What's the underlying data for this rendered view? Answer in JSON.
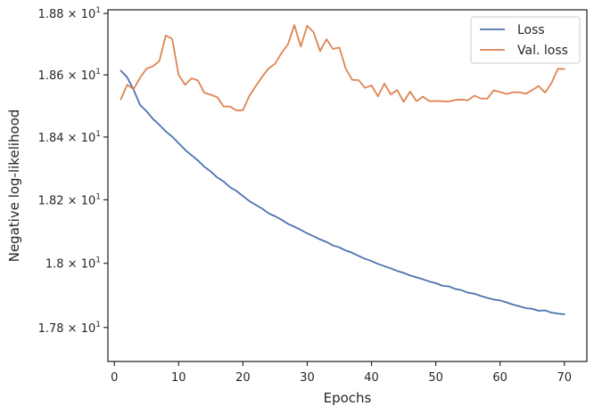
{
  "chart_data": {
    "type": "line",
    "xlabel": "Epochs",
    "ylabel": "Negative log-likelihood",
    "xlim": [
      -1,
      73.5
    ],
    "ylim": [
      17.695,
      18.812
    ],
    "y_scale": "log",
    "grid": false,
    "legend_position": "top-right",
    "x_ticks": [
      {
        "value": 0,
        "label": "0"
      },
      {
        "value": 10,
        "label": "10"
      },
      {
        "value": 20,
        "label": "20"
      },
      {
        "value": 30,
        "label": "30"
      },
      {
        "value": 40,
        "label": "40"
      },
      {
        "value": 50,
        "label": "50"
      },
      {
        "value": 60,
        "label": "60"
      },
      {
        "value": 70,
        "label": "70"
      }
    ],
    "y_ticks": [
      {
        "value": 17.8,
        "mantissa": "1.78 × 10",
        "exponent": "1"
      },
      {
        "value": 18.0,
        "mantissa": "1.8 × 10",
        "exponent": "1"
      },
      {
        "value": 18.2,
        "mantissa": "1.82 × 10",
        "exponent": "1"
      },
      {
        "value": 18.4,
        "mantissa": "1.84 × 10",
        "exponent": "1"
      },
      {
        "value": 18.6,
        "mantissa": "1.86 × 10",
        "exponent": "1"
      },
      {
        "value": 18.8,
        "mantissa": "1.88 × 10",
        "exponent": "1"
      }
    ],
    "series": [
      {
        "name": "Loss",
        "color": "#4c72b0",
        "x": [
          1,
          2,
          3,
          4,
          5,
          6,
          7,
          8,
          9,
          10,
          11,
          12,
          13,
          14,
          15,
          16,
          17,
          18,
          19,
          20,
          21,
          22,
          23,
          24,
          25,
          26,
          27,
          28,
          29,
          30,
          31,
          32,
          33,
          34,
          35,
          36,
          37,
          38,
          39,
          40,
          41,
          42,
          43,
          44,
          45,
          46,
          47,
          48,
          49,
          50,
          51,
          52,
          53,
          54,
          55,
          56,
          57,
          58,
          59,
          60,
          61,
          62,
          63,
          64,
          65,
          66,
          67,
          68,
          69,
          70
        ],
        "values": [
          18.614,
          18.592,
          18.552,
          18.503,
          18.483,
          18.458,
          18.439,
          18.418,
          18.401,
          18.38,
          18.359,
          18.342,
          18.325,
          18.305,
          18.29,
          18.271,
          18.258,
          18.24,
          18.228,
          18.212,
          18.196,
          18.184,
          18.172,
          18.157,
          18.148,
          18.137,
          18.124,
          18.115,
          18.105,
          18.094,
          18.085,
          18.075,
          18.067,
          18.056,
          18.05,
          18.04,
          18.033,
          18.023,
          18.014,
          18.007,
          17.998,
          17.991,
          17.984,
          17.976,
          17.97,
          17.962,
          17.956,
          17.95,
          17.943,
          17.938,
          17.93,
          17.928,
          17.92,
          17.916,
          17.908,
          17.905,
          17.898,
          17.892,
          17.887,
          17.884,
          17.878,
          17.871,
          17.866,
          17.86,
          17.858,
          17.852,
          17.853,
          17.846,
          17.843,
          17.841
        ]
      },
      {
        "name": "Val. loss",
        "color": "#dd8452",
        "x": [
          1,
          2,
          3,
          4,
          5,
          6,
          7,
          8,
          9,
          10,
          11,
          12,
          13,
          14,
          15,
          16,
          17,
          18,
          19,
          20,
          21,
          22,
          23,
          24,
          25,
          26,
          27,
          28,
          29,
          30,
          31,
          32,
          33,
          34,
          35,
          36,
          37,
          38,
          39,
          40,
          41,
          42,
          43,
          44,
          45,
          46,
          47,
          48,
          49,
          50,
          51,
          52,
          53,
          54,
          55,
          56,
          57,
          58,
          59,
          60,
          61,
          62,
          63,
          64,
          65,
          66,
          67,
          68,
          69,
          70
        ],
        "values": [
          18.521,
          18.568,
          18.554,
          18.591,
          18.62,
          18.628,
          18.645,
          18.728,
          18.717,
          18.6,
          18.568,
          18.589,
          18.582,
          18.542,
          18.536,
          18.528,
          18.498,
          18.498,
          18.485,
          18.486,
          18.532,
          18.564,
          18.594,
          18.621,
          18.636,
          18.671,
          18.699,
          18.762,
          18.692,
          18.76,
          18.738,
          18.677,
          18.716,
          18.684,
          18.689,
          18.62,
          18.584,
          18.583,
          18.558,
          18.566,
          18.531,
          18.572,
          18.537,
          18.551,
          18.513,
          18.546,
          18.515,
          18.53,
          18.515,
          18.516,
          18.515,
          18.514,
          18.519,
          18.52,
          18.518,
          18.533,
          18.524,
          18.523,
          18.55,
          18.545,
          18.538,
          18.544,
          18.544,
          18.539,
          18.551,
          18.564,
          18.543,
          18.574,
          18.62,
          18.619
        ]
      }
    ]
  }
}
